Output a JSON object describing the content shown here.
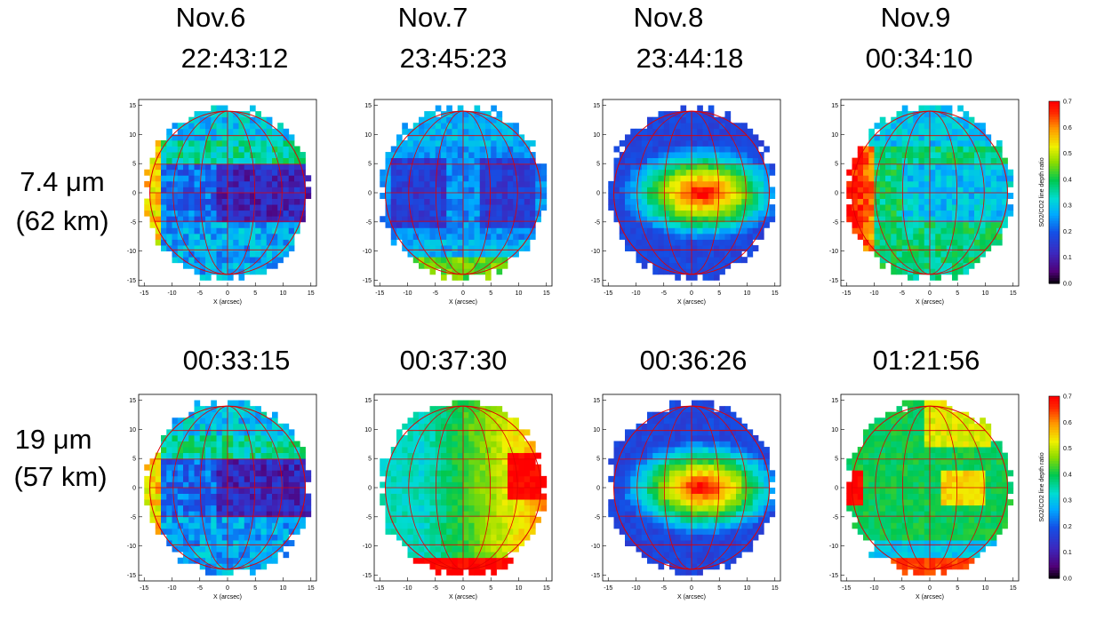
{
  "headers": {
    "col1_date": "Nov.6",
    "col2_date": "Nov.7",
    "col3_date": "Nov.8",
    "col4_date": "Nov.9",
    "row1_times": [
      "22:43:12",
      "23:45:23",
      "23:44:18",
      "00:34:10"
    ],
    "row2_times": [
      "00:33:15",
      "00:37:30",
      "00:36:26",
      "01:21:56"
    ]
  },
  "row_labels": {
    "row1_line1": "7.4 μm",
    "row1_line2": "(62 km)",
    "row2_line1": "19 μm",
    "row2_line2": "(57 km)"
  },
  "axis": {
    "xlabel": "X (arcsec)",
    "xticks": [
      "-15",
      "-10",
      "-5",
      "0",
      "5",
      "10",
      "15"
    ],
    "yticks": [
      "15",
      "10",
      "5",
      "0",
      "-5",
      "-10",
      "-15"
    ]
  },
  "colorbar": {
    "label": "SO2/CO2 line depth ratio",
    "ticks": [
      "0.7",
      "0.6",
      "0.5",
      "0.4",
      "0.3",
      "0.2",
      "0.1",
      "0.0"
    ],
    "colors": [
      "#000000",
      "#4b0082",
      "#3333cc",
      "#00a0ff",
      "#00e0e0",
      "#00d060",
      "#a0e000",
      "#ffff00",
      "#ffa000",
      "#ff2000",
      "#ff0000"
    ]
  },
  "chart_data": [
    {
      "type": "heatmap",
      "time": "22:43:12",
      "wavelength": "7.4 μm",
      "pattern": "low-blue",
      "xlim": [
        -15,
        15
      ],
      "ylim": [
        -15,
        15
      ]
    },
    {
      "type": "heatmap",
      "time": "23:45:23",
      "wavelength": "7.4 μm",
      "pattern": "low-cyan",
      "xlim": [
        -15,
        15
      ],
      "ylim": [
        -15,
        15
      ]
    },
    {
      "type": "heatmap",
      "time": "23:44:18",
      "wavelength": "7.4 μm",
      "pattern": "high-center",
      "xlim": [
        -15,
        15
      ],
      "ylim": [
        -15,
        15
      ]
    },
    {
      "type": "heatmap",
      "time": "00:34:10",
      "wavelength": "7.4 μm",
      "pattern": "west-limb",
      "xlim": [
        -15,
        15
      ],
      "ylim": [
        -15,
        15
      ]
    },
    {
      "type": "heatmap",
      "time": "00:33:15",
      "wavelength": "19 μm",
      "pattern": "low-blue",
      "xlim": [
        -15,
        15
      ],
      "ylim": [
        -15,
        15
      ]
    },
    {
      "type": "heatmap",
      "time": "00:37:30",
      "wavelength": "19 μm",
      "pattern": "east-high",
      "xlim": [
        -15,
        15
      ],
      "ylim": [
        -15,
        15
      ]
    },
    {
      "type": "heatmap",
      "time": "00:36:26",
      "wavelength": "19 μm",
      "pattern": "high-center",
      "xlim": [
        -15,
        15
      ],
      "ylim": [
        -15,
        15
      ]
    },
    {
      "type": "heatmap",
      "time": "01:21:56",
      "wavelength": "19 μm",
      "pattern": "mid-green",
      "xlim": [
        -15,
        15
      ],
      "ylim": [
        -15,
        15
      ]
    }
  ]
}
